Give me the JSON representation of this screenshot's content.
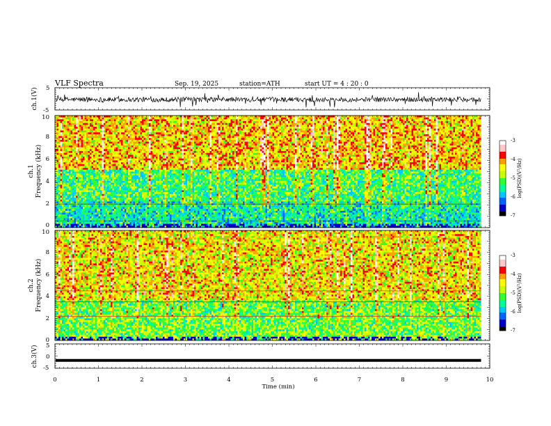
{
  "header": {
    "title": "VLF  Spectra",
    "date": "Sep. 19, 2025",
    "station": "station=ATH",
    "start": "start  UT  =   4  : 20 : 0"
  },
  "chart_data": [
    {
      "type": "line",
      "name": "ch1-waveform",
      "ylabel": "ch.1(V)",
      "ylim": [
        -5,
        5
      ],
      "yticks": [
        "5",
        "-5"
      ],
      "xlim": [
        0,
        10
      ],
      "color": "#000000"
    },
    {
      "type": "heatmap",
      "name": "ch1-spectrogram",
      "ylabel": "ch.1\nFrequency (kHz)",
      "ylabel_lines": [
        "ch.1",
        "Frequency (kHz)"
      ],
      "xlim": [
        0,
        9.8
      ],
      "ylim": [
        0,
        10
      ],
      "yticks": [
        "0",
        "2",
        "4",
        "6",
        "8",
        "10"
      ],
      "colorbar": {
        "label": "log(PSD)(V²/Hz)",
        "range": [
          -7,
          -3
        ],
        "ticks": [
          "-3",
          "-4",
          "-5",
          "-6",
          "-7"
        ]
      },
      "note": "dense broadband noise; blue/green below ~5 kHz, yellow/red above, dark at 0.5 kHz"
    },
    {
      "type": "heatmap",
      "name": "ch2-spectrogram",
      "ylabel": "ch.2\nFrequency (kHz)",
      "ylabel_lines": [
        "ch.2",
        "Frequency (kHz)"
      ],
      "xlim": [
        0,
        9.8
      ],
      "ylim": [
        0,
        10
      ],
      "yticks": [
        "0",
        "2",
        "4",
        "6",
        "8",
        "10"
      ],
      "colorbar": {
        "label": "log(PSD)(V²/Hz)",
        "range": [
          -7,
          -3
        ],
        "ticks": [
          "-3",
          "-4",
          "-5",
          "-6",
          "-7"
        ]
      },
      "note": "green below ~3.5 kHz, yellow/green/red above, horizontal red lines at 2.2, 3.5, 4.5 kHz"
    },
    {
      "type": "line",
      "name": "ch3-waveform",
      "ylabel": "ch.3(V)",
      "ylim": [
        -5,
        5
      ],
      "yticks": [
        "5",
        "0",
        "-5"
      ],
      "xlim": [
        0,
        10
      ],
      "constant_value": -1.8,
      "color": "#000000"
    }
  ],
  "xaxis": {
    "label": "Time  (min)",
    "ticks": [
      "0",
      "1",
      "2",
      "3",
      "4",
      "5",
      "6",
      "7",
      "8",
      "9",
      "10"
    ]
  },
  "colors": {
    "colormap": [
      "#000000",
      "#0000c8",
      "#0064ff",
      "#00c8ff",
      "#00ff96",
      "#32ff32",
      "#c8ff00",
      "#ffff00",
      "#ffa000",
      "#ff0000",
      "#ffc8c8",
      "#ffffff"
    ]
  }
}
